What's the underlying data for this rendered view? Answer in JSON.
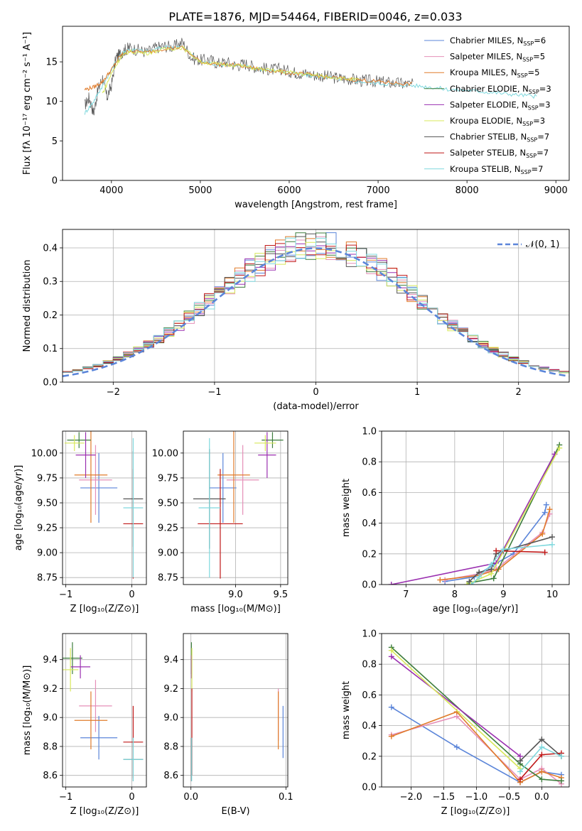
{
  "figure_title": "PLATE=1876, MJD=54464, FIBERID=0046, z=0.033",
  "colors": {
    "chabrier_miles": "#5b85d9",
    "salpeter_miles": "#e58fb8",
    "kroupa_miles": "#e07b2a",
    "chabrier_elodie": "#3d7d3d",
    "salpeter_elodie": "#9a2fb0",
    "kroupa_elodie": "#d8e85a",
    "chabrier_stelib": "#555555",
    "salpeter_stelib": "#c01818",
    "kroupa_stelib": "#7fd8dd",
    "grid": "#b0b0b0",
    "gauss": "#5b85d9"
  },
  "chart_data": [
    {
      "id": "spectrum",
      "type": "line",
      "xlabel": "wavelength [Angstrom, rest frame]",
      "ylabel": "Flux [fλ 10⁻¹⁷ erg cm⁻² s⁻¹ A⁻¹]",
      "xlim": [
        3450,
        9150
      ],
      "ylim": [
        0,
        19.5
      ],
      "xticks": [
        4000,
        5000,
        6000,
        7000,
        8000,
        9000
      ],
      "yticks": [
        0,
        5,
        10,
        15
      ],
      "grid": false,
      "legend_position": "top-right",
      "legend": [
        {
          "text": "Chabrier MILES, N",
          "sub": "SSP",
          "eq": "=6"
        },
        {
          "text": "Salpeter MILES, N",
          "sub": "SSP",
          "eq": "=5"
        },
        {
          "text": "Kroupa MILES, N",
          "sub": "SSP",
          "eq": "=5"
        },
        {
          "text": "Chabrier ELODIE, N",
          "sub": "SSP",
          "eq": "=3"
        },
        {
          "text": "Salpeter ELODIE, N",
          "sub": "SSP",
          "eq": "=3"
        },
        {
          "text": "Kroupa ELODIE, N",
          "sub": "SSP",
          "eq": "=3"
        },
        {
          "text": "Chabrier STELIB, N",
          "sub": "SSP",
          "eq": "=7"
        },
        {
          "text": "Salpeter STELIB, N",
          "sub": "SSP",
          "eq": "=7"
        },
        {
          "text": "Kroupa STELIB, N",
          "sub": "SSP",
          "eq": "=7"
        }
      ],
      "series": [
        {
          "key": "observed_data",
          "color": "chabrier_stelib",
          "x": [
            3700,
            3750,
            3800,
            3850,
            3900,
            3950,
            4000,
            4050,
            4100,
            4150,
            4200,
            4300,
            4400,
            4500,
            4600,
            4700,
            4800,
            4900,
            5000,
            5100,
            5200,
            5300,
            5400,
            5500,
            5600,
            5700,
            5800,
            5900,
            6000,
            6100,
            6200,
            6300,
            6400,
            6500,
            6600,
            6700,
            6800,
            6900,
            7000,
            7100,
            7200,
            7300,
            7400
          ],
          "y": [
            9.5,
            10.5,
            8.5,
            11.5,
            13,
            10.5,
            12,
            15.5,
            16,
            16.5,
            16.8,
            16.5,
            16.2,
            16.8,
            17,
            16.9,
            17.5,
            15.5,
            15.2,
            15.3,
            14.8,
            15,
            14.5,
            14.8,
            14.4,
            14.2,
            14,
            14.1,
            13.8,
            13.6,
            13.5,
            13.3,
            13.2,
            13,
            12.9,
            12.8,
            12.6,
            12.6,
            12.5,
            12.4,
            12.3,
            12.2,
            12.1
          ]
        },
        {
          "key": "kroupa_stelib",
          "color": "kroupa_stelib",
          "x": [
            3700,
            3800,
            3900,
            4000,
            4100,
            4200,
            4400,
            4600,
            4800,
            5000,
            5200,
            5400,
            5600,
            5800,
            6000,
            6200,
            6400,
            6600,
            6800,
            7000,
            7200,
            7400,
            7600,
            7800,
            8000,
            8200,
            8400,
            8600,
            8800
          ],
          "y": [
            8.5,
            10,
            12,
            14,
            16,
            16.6,
            16.3,
            16.9,
            16.9,
            15,
            14.7,
            14.6,
            14.2,
            13.9,
            13.6,
            13.3,
            13.1,
            12.8,
            12.5,
            12.3,
            12.1,
            12,
            11.8,
            11.5,
            11.4,
            11.2,
            11,
            10.8,
            10.6
          ]
        },
        {
          "key": "kroupa_miles",
          "color": "kroupa_miles",
          "x": [
            3700,
            3800,
            3900,
            4000,
            4100,
            4200,
            4400,
            4600,
            4800,
            5000,
            5200,
            5400,
            5600,
            5800,
            6000,
            6200,
            6400,
            6600,
            6800,
            7000,
            7200,
            7400
          ],
          "y": [
            11.5,
            11.8,
            12.5,
            14,
            15.8,
            16.4,
            16.2,
            16.7,
            16.8,
            15,
            14.7,
            14.6,
            14.2,
            13.9,
            13.6,
            13.4,
            13.1,
            12.9,
            12.7,
            12.5,
            12.3,
            12.2
          ]
        },
        {
          "key": "kroupa_elodie",
          "color": "kroupa_elodie",
          "x": [
            3900,
            4000,
            4100,
            4200,
            4400,
            4600,
            4800,
            5000,
            5200,
            5400,
            5600,
            5800,
            6000,
            6200,
            6400,
            6600,
            6800
          ],
          "y": [
            11,
            13.5,
            15.5,
            16.3,
            16.1,
            16.6,
            16.8,
            15,
            14.7,
            14.6,
            14.2,
            13.9,
            13.7,
            13.4,
            13.2,
            12.9,
            12.7
          ]
        }
      ]
    },
    {
      "id": "residuals",
      "type": "histogram",
      "xlabel": "(data-model)/error",
      "ylabel": "Normed distribution",
      "xlim": [
        -2.5,
        2.5
      ],
      "ylim": [
        0,
        0.455
      ],
      "xticks": [
        -2,
        -1,
        0,
        1,
        2
      ],
      "yticks": [
        0.0,
        0.1,
        0.2,
        0.3,
        0.4
      ],
      "grid": true,
      "legend_position": "top-right",
      "legend": [
        {
          "text": "𝒩(0, 1)",
          "color": "gauss"
        }
      ],
      "bin_width": 0.1,
      "series_colors": [
        "chabrier_miles",
        "salpeter_miles",
        "kroupa_miles",
        "chabrier_elodie",
        "salpeter_elodie",
        "kroupa_elodie",
        "chabrier_stelib",
        "salpeter_stelib",
        "kroupa_stelib"
      ],
      "gaussian": {
        "mean": 0,
        "sigma": 1
      }
    },
    {
      "id": "age_vs_Z",
      "type": "errorbar",
      "xlabel": "Z [log₁₀(Z/Z⊙)]",
      "ylabel": "age  [log₁₀(age/yr)]",
      "xlim": [
        -1.05,
        0.22
      ],
      "ylim": [
        8.68,
        10.22
      ],
      "xticks": [
        -1,
        0
      ],
      "yticks": [
        8.75,
        9.0,
        9.25,
        9.5,
        9.75,
        10.0
      ],
      "grid": true,
      "points": [
        {
          "series": "chabrier_miles",
          "x": -0.5,
          "xerr": 0.28,
          "y": 9.65,
          "yerr": 0.35
        },
        {
          "series": "salpeter_miles",
          "x": -0.55,
          "xerr": 0.25,
          "y": 9.73,
          "yerr": 0.35
        },
        {
          "series": "kroupa_miles",
          "x": -0.62,
          "xerr": 0.25,
          "y": 9.78,
          "yerr": 0.48
        },
        {
          "series": "chabrier_elodie",
          "x": -0.8,
          "xerr": 0.18,
          "y": 10.13,
          "yerr": 0.08
        },
        {
          "series": "salpeter_elodie",
          "x": -0.7,
          "xerr": 0.15,
          "y": 9.98,
          "yerr": 0.23
        },
        {
          "series": "kroupa_elodie",
          "x": -0.87,
          "xerr": 0.15,
          "y": 10.1,
          "yerr": 0.08
        },
        {
          "series": "chabrier_stelib",
          "x": 0.02,
          "xerr": 0.15,
          "y": 9.54,
          "yerr": 0.48
        },
        {
          "series": "salpeter_stelib",
          "x": 0.02,
          "xerr": 0.15,
          "y": 9.29,
          "yerr": 0.55
        },
        {
          "series": "kroupa_stelib",
          "x": 0.02,
          "xerr": 0.15,
          "y": 9.45,
          "yerr": 0.7
        }
      ]
    },
    {
      "id": "age_vs_mass",
      "type": "errorbar",
      "xlabel": "mass [log₁₀(M/M⊙)]",
      "ylabel": "",
      "xlim": [
        8.42,
        9.58
      ],
      "ylim": [
        8.68,
        10.22
      ],
      "xticks": [
        9.0,
        9.5
      ],
      "yticks": [
        8.75,
        9.0,
        9.25,
        9.5,
        9.75,
        10.0
      ],
      "grid": true,
      "points": [
        {
          "series": "chabrier_miles",
          "x": 8.86,
          "xerr": 0.15,
          "y": 9.65,
          "yerr": 0.35
        },
        {
          "series": "salpeter_miles",
          "x": 9.08,
          "xerr": 0.18,
          "y": 9.73,
          "yerr": 0.35
        },
        {
          "series": "kroupa_miles",
          "x": 8.98,
          "xerr": 0.18,
          "y": 9.78,
          "yerr": 0.48
        },
        {
          "series": "chabrier_elodie",
          "x": 9.41,
          "xerr": 0.12,
          "y": 10.13,
          "yerr": 0.08
        },
        {
          "series": "salpeter_elodie",
          "x": 9.35,
          "xerr": 0.1,
          "y": 9.98,
          "yerr": 0.23
        },
        {
          "series": "kroupa_elodie",
          "x": 9.33,
          "xerr": 0.12,
          "y": 10.1,
          "yerr": 0.08
        },
        {
          "series": "chabrier_stelib",
          "x": 8.71,
          "xerr": 0.18,
          "y": 9.54,
          "yerr": 0.5
        },
        {
          "series": "salpeter_stelib",
          "x": 8.83,
          "xerr": 0.25,
          "y": 9.29,
          "yerr": 0.55
        },
        {
          "series": "kroupa_stelib",
          "x": 8.71,
          "xerr": 0.12,
          "y": 9.45,
          "yerr": 0.7
        }
      ]
    },
    {
      "id": "mass_weight_vs_age",
      "type": "line",
      "xlabel": "age  [log₁₀(age/yr)]",
      "ylabel": "mass weight",
      "xlim": [
        6.5,
        10.35
      ],
      "ylim": [
        0,
        1.0
      ],
      "xticks": [
        7,
        8,
        9,
        10
      ],
      "yticks": [
        0.0,
        0.2,
        0.4,
        0.6,
        0.8,
        1.0
      ],
      "grid": true,
      "series": [
        {
          "series": "chabrier_miles",
          "x": [
            7.8,
            8.4,
            8.8,
            9.2,
            9.85,
            9.88
          ],
          "y": [
            0.02,
            0.05,
            0.13,
            0.2,
            0.47,
            0.52
          ]
        },
        {
          "series": "salpeter_miles",
          "x": [
            7.8,
            8.5,
            8.85,
            9.8,
            9.95
          ],
          "y": [
            0.03,
            0.07,
            0.1,
            0.34,
            0.46
          ]
        },
        {
          "series": "kroupa_miles",
          "x": [
            7.7,
            8.5,
            8.9,
            9.8,
            9.95
          ],
          "y": [
            0.03,
            0.06,
            0.1,
            0.33,
            0.49
          ]
        },
        {
          "series": "chabrier_elodie",
          "x": [
            8.3,
            8.8,
            10.15
          ],
          "y": [
            0.01,
            0.04,
            0.91
          ]
        },
        {
          "series": "salpeter_elodie",
          "x": [
            6.7,
            8.85,
            10.05
          ],
          "y": [
            0.0,
            0.14,
            0.85
          ]
        },
        {
          "series": "kroupa_elodie",
          "x": [
            8.25,
            8.75,
            10.15
          ],
          "y": [
            0.0,
            0.07,
            0.89
          ]
        },
        {
          "series": "chabrier_stelib",
          "x": [
            8.3,
            8.5,
            8.75,
            8.85,
            9.0,
            10.0
          ],
          "y": [
            0.02,
            0.08,
            0.1,
            0.2,
            0.22,
            0.31
          ]
        },
        {
          "series": "salpeter_stelib",
          "x": [
            8.85,
            9.85
          ],
          "y": [
            0.22,
            0.21
          ]
        },
        {
          "series": "kroupa_stelib",
          "x": [
            8.35,
            8.5,
            8.75,
            9.0,
            10.0
          ],
          "y": [
            0.0,
            0.05,
            0.13,
            0.23,
            0.26
          ]
        }
      ]
    },
    {
      "id": "mass_vs_Z",
      "type": "errorbar",
      "xlabel": "Z [log₁₀(Z/Z⊙)]",
      "ylabel": "mass [log₁₀(M/M⊙)]",
      "xlim": [
        -1.05,
        0.22
      ],
      "ylim": [
        8.52,
        9.58
      ],
      "xticks": [
        -1,
        0
      ],
      "yticks": [
        8.6,
        8.8,
        9.0,
        9.2,
        9.4
      ],
      "grid": true,
      "points": [
        {
          "series": "chabrier_miles",
          "x": -0.5,
          "xerr": 0.28,
          "y": 8.86,
          "yerr": 0.15
        },
        {
          "series": "salpeter_miles",
          "x": -0.55,
          "xerr": 0.25,
          "y": 9.08,
          "yerr": 0.18
        },
        {
          "series": "kroupa_miles",
          "x": -0.62,
          "xerr": 0.25,
          "y": 8.98,
          "yerr": 0.2
        },
        {
          "series": "chabrier_elodie",
          "x": -0.9,
          "xerr": 0.15,
          "y": 9.41,
          "yerr": 0.11
        },
        {
          "series": "salpeter_elodie",
          "x": -0.78,
          "xerr": 0.15,
          "y": 9.35,
          "yerr": 0.08
        },
        {
          "series": "kroupa_elodie",
          "x": -0.93,
          "xerr": 0.12,
          "y": 9.33,
          "yerr": 0.15
        },
        {
          "series": "chabrier_stelib",
          "x": 0.02,
          "xerr": 0.15,
          "y": 8.71,
          "yerr": 0.15
        },
        {
          "series": "salpeter_stelib",
          "x": 0.02,
          "xerr": 0.15,
          "y": 8.83,
          "yerr": 0.25
        },
        {
          "series": "kroupa_stelib",
          "x": 0.02,
          "xerr": 0.15,
          "y": 8.71,
          "yerr": 0.15
        }
      ]
    },
    {
      "id": "mass_vs_ebv",
      "type": "errorbar",
      "xlabel": "E(B-V)",
      "ylabel": "",
      "xlim": [
        -0.008,
        0.102
      ],
      "ylim": [
        8.52,
        9.58
      ],
      "xticks": [
        0.0,
        0.1
      ],
      "yticks": [
        8.6,
        8.8,
        9.0,
        9.2,
        9.4
      ],
      "grid": true,
      "points": [
        {
          "series": "chabrier_miles",
          "x": 0.097,
          "xerr": 0,
          "y": 8.9,
          "yerr": 0.18
        },
        {
          "series": "salpeter_miles",
          "x": 0.092,
          "xerr": 0,
          "y": 9.02,
          "yerr": 0.18
        },
        {
          "series": "kroupa_miles",
          "x": 0.092,
          "xerr": 0,
          "y": 8.98,
          "yerr": 0.2
        },
        {
          "series": "chabrier_elodie",
          "x": 0.0005,
          "xerr": 0,
          "y": 9.41,
          "yerr": 0.11
        },
        {
          "series": "salpeter_elodie",
          "x": 0.0005,
          "xerr": 0,
          "y": 9.35,
          "yerr": 0.08
        },
        {
          "series": "kroupa_elodie",
          "x": 0.001,
          "xerr": 0,
          "y": 9.33,
          "yerr": 0.15
        },
        {
          "series": "chabrier_stelib",
          "x": 0.0005,
          "xerr": 0,
          "y": 8.71,
          "yerr": 0.15
        },
        {
          "series": "salpeter_stelib",
          "x": 0.001,
          "xerr": 0,
          "y": 8.9,
          "yerr": 0.3
        },
        {
          "series": "kroupa_stelib",
          "x": 0.0008,
          "xerr": 0,
          "y": 8.71,
          "yerr": 0.15
        }
      ]
    },
    {
      "id": "mass_weight_vs_Z",
      "type": "line",
      "xlabel": "Z [log₁₀(Z/Z⊙)]",
      "ylabel": "mass weight",
      "xlim": [
        -2.45,
        0.42
      ],
      "ylim": [
        0,
        1.0
      ],
      "xticks": [
        -2.0,
        -1.5,
        -1.0,
        -0.5,
        0.0
      ],
      "yticks": [
        0.0,
        0.2,
        0.4,
        0.6,
        0.8,
        1.0
      ],
      "grid": true,
      "series": [
        {
          "series": "chabrier_miles",
          "x": [
            -2.3,
            -1.3,
            -0.33,
            0.0,
            0.3
          ],
          "y": [
            0.52,
            0.26,
            0.03,
            0.1,
            0.08
          ]
        },
        {
          "series": "salpeter_miles",
          "x": [
            -2.3,
            -1.3,
            -0.33,
            0.0,
            0.3
          ],
          "y": [
            0.34,
            0.46,
            0.05,
            0.12,
            0.02
          ]
        },
        {
          "series": "kroupa_miles",
          "x": [
            -2.3,
            -1.3,
            -0.33,
            0.0,
            0.3
          ],
          "y": [
            0.33,
            0.49,
            0.03,
            0.1,
            0.06
          ]
        },
        {
          "series": "chabrier_elodie",
          "x": [
            -2.3,
            -0.33,
            0.0,
            0.3
          ],
          "y": [
            0.91,
            0.15,
            0.05,
            0.04
          ]
        },
        {
          "series": "salpeter_elodie",
          "x": [
            -2.3,
            -0.33
          ],
          "y": [
            0.85,
            0.2
          ]
        },
        {
          "series": "kroupa_elodie",
          "x": [
            -2.3,
            -0.33
          ],
          "y": [
            0.89,
            0.12
          ]
        },
        {
          "series": "chabrier_stelib",
          "x": [
            -0.33,
            0.0,
            0.3
          ],
          "y": [
            0.17,
            0.31,
            0.2
          ]
        },
        {
          "series": "salpeter_stelib",
          "x": [
            -0.33,
            0.0,
            0.3
          ],
          "y": [
            0.05,
            0.21,
            0.22
          ]
        },
        {
          "series": "kroupa_stelib",
          "x": [
            -0.33,
            0.0,
            0.3
          ],
          "y": [
            0.1,
            0.26,
            0.2
          ]
        }
      ]
    }
  ]
}
